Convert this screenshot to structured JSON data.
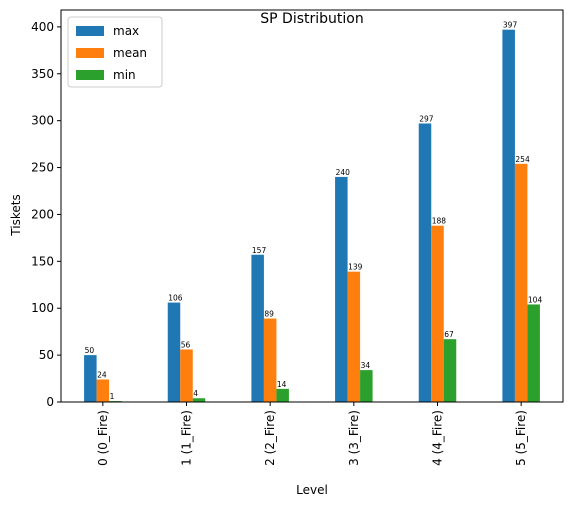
{
  "chart_data": {
    "type": "bar",
    "title": "SP Distribution",
    "xlabel": "Level",
    "ylabel": "Tiskets",
    "categories": [
      "0 (0_Fire)",
      "1 (1_Fire)",
      "2 (2_Fire)",
      "3 (3_Fire)",
      "4 (4_Fire)",
      "5 (5_Fire)"
    ],
    "series": [
      {
        "name": "max",
        "color": "#1f77b4",
        "values": [
          50,
          106,
          157,
          240,
          297,
          397
        ]
      },
      {
        "name": "mean",
        "color": "#ff7f0e",
        "values": [
          24,
          56,
          89,
          139,
          188,
          254
        ]
      },
      {
        "name": "min",
        "color": "#2ca02c",
        "values": [
          1,
          4,
          14,
          34,
          67,
          104
        ]
      }
    ],
    "ylim": [
      0,
      418
    ],
    "yticks": [
      0,
      50,
      100,
      150,
      200,
      250,
      300,
      350,
      400
    ],
    "grid": false,
    "legend_position": "top-left"
  }
}
